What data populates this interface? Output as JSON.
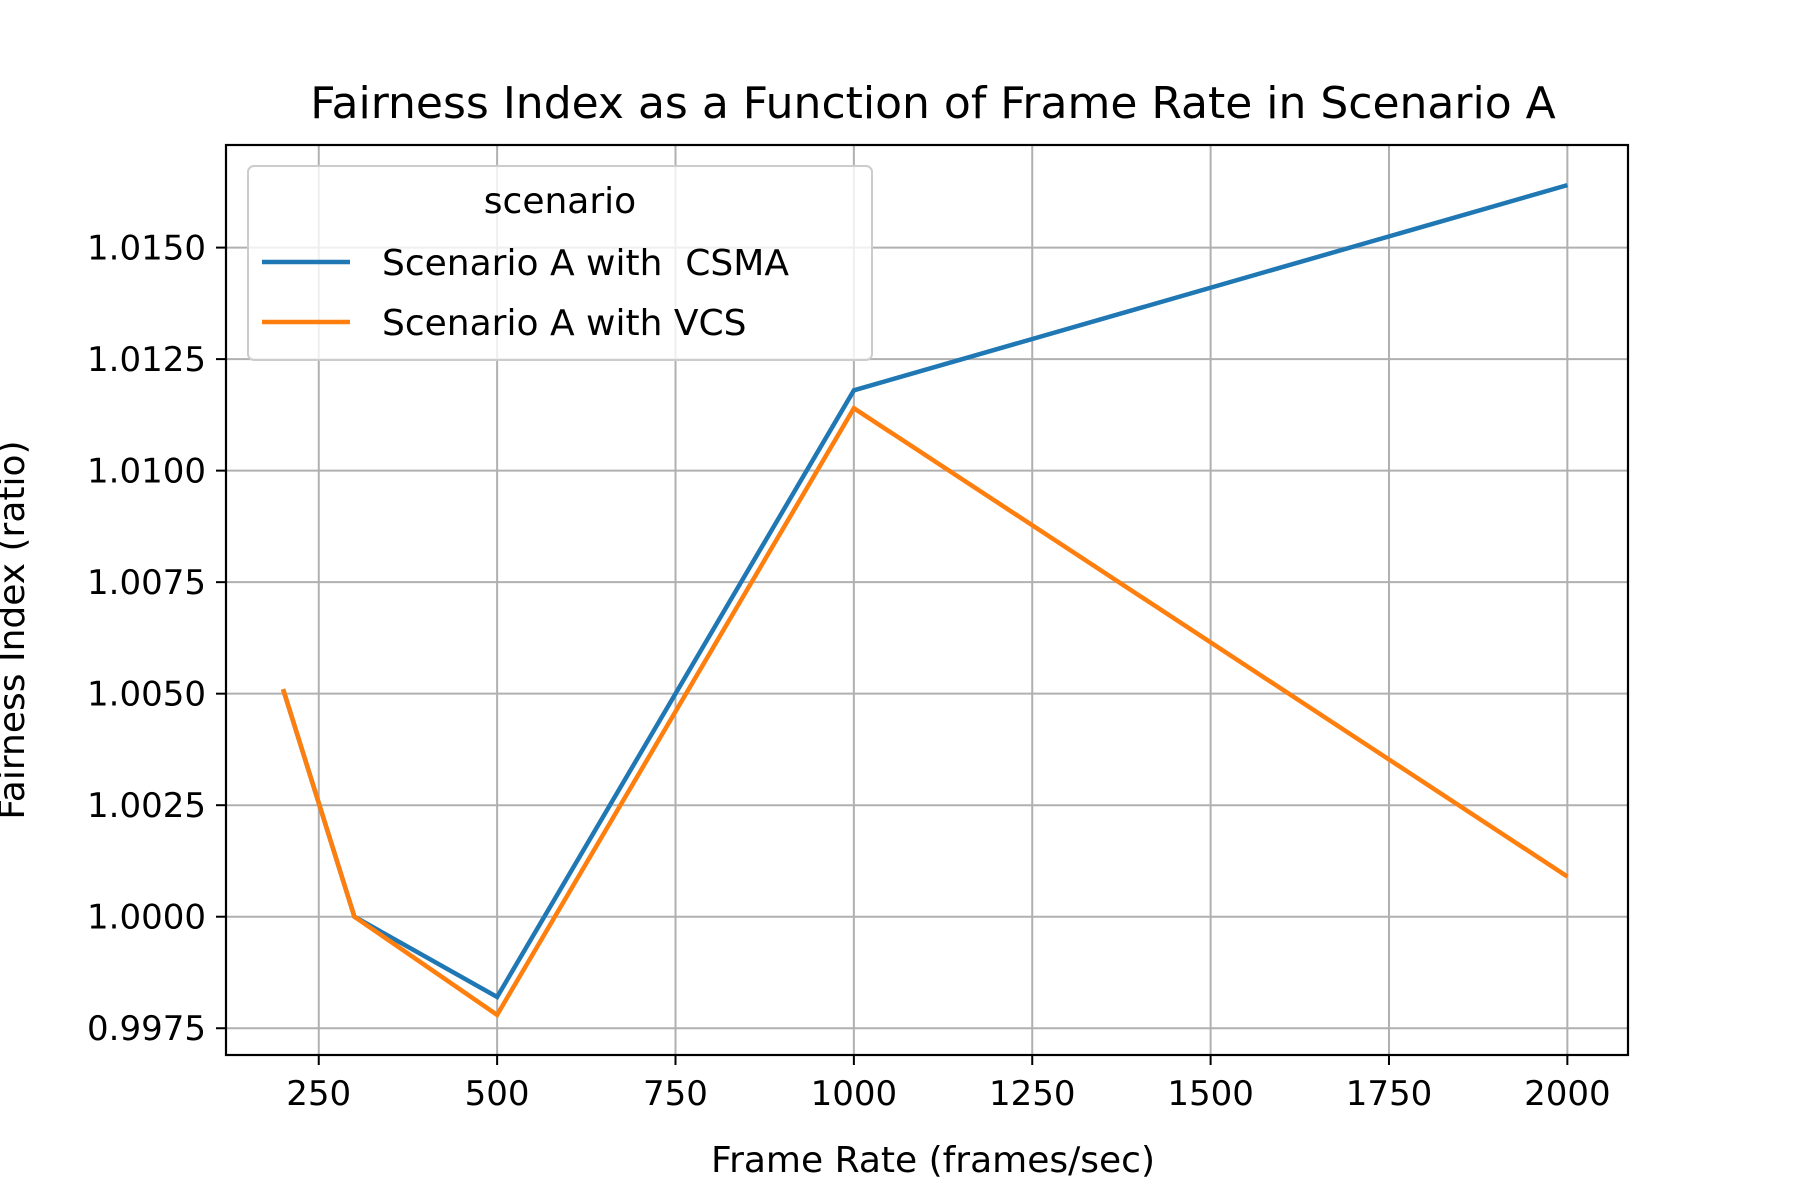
{
  "chart_data": {
    "type": "line",
    "title": "Fairness Index as a Function of Frame Rate in Scenario A",
    "xlabel": "Frame Rate (frames/sec)",
    "ylabel": "Fairness Index (ratio)",
    "xlim": [
      120,
      2085
    ],
    "ylim": [
      0.9969,
      1.0173
    ],
    "xticks": [
      250,
      500,
      750,
      1000,
      1250,
      1500,
      1750,
      2000
    ],
    "xtick_labels": [
      "250",
      "500",
      "750",
      "1000",
      "1250",
      "1500",
      "1750",
      "2000"
    ],
    "yticks": [
      0.9975,
      1.0,
      1.0025,
      1.005,
      1.0075,
      1.01,
      1.0125,
      1.015
    ],
    "ytick_labels": [
      "0.9975",
      "1.0000",
      "1.0025",
      "1.0050",
      "1.0075",
      "1.0100",
      "1.0125",
      "1.0150"
    ],
    "grid": true,
    "legend": {
      "title": "scenario",
      "position": "top-left"
    },
    "series": [
      {
        "name": "Scenario A with  CSMA",
        "color": "#1f77b4",
        "x": [
          200,
          300,
          500,
          1000,
          2000
        ],
        "y": [
          1.0051,
          1.0,
          0.9982,
          1.0118,
          1.0164
        ]
      },
      {
        "name": "Scenario A with VCS",
        "color": "#ff7f0e",
        "x": [
          200,
          300,
          500,
          1000,
          2000
        ],
        "y": [
          1.0051,
          1.0,
          0.9978,
          1.0114,
          1.0009
        ]
      }
    ]
  }
}
